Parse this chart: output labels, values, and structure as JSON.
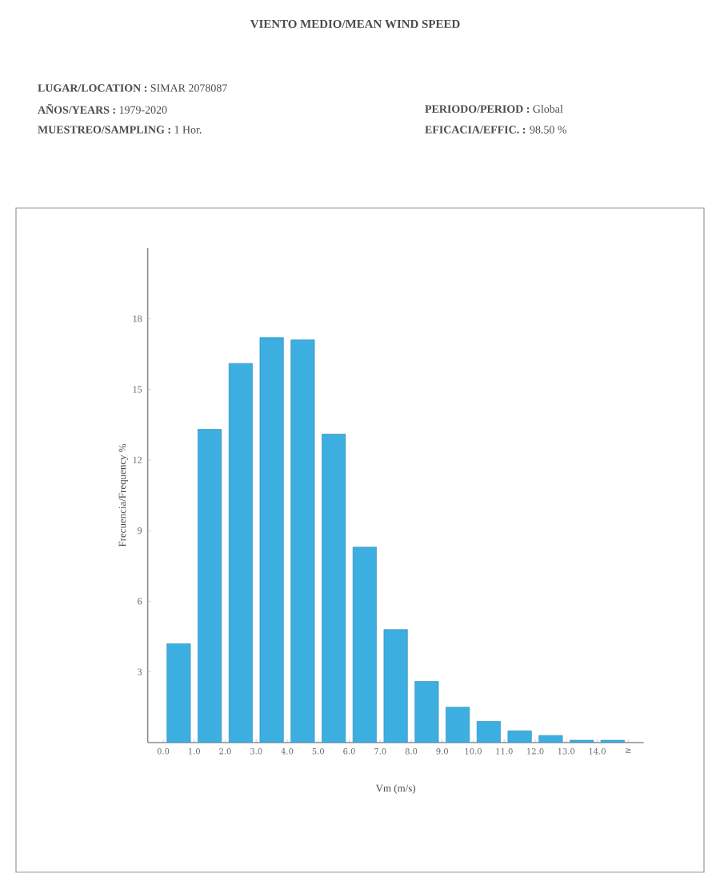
{
  "chart_data": {
    "type": "histogram",
    "title": "VIENTO MEDIO/MEAN WIND SPEED",
    "annotations": [
      "**LUGAR/LOCATION :** SIMAR 2078087",
      "**AÑOS/YEARS :** 1979-2020",
      "**PERIODO/PERIOD :** Global",
      "**MUESTREO/SAMPLING :** 1 Hor.",
      "**EFICACIA/EFFIC. :** 98.50 %"
    ],
    "xlabel": "Vm (m/s)",
    "ylabel": "Frecuencia/Frequency %",
    "bins": [
      0,
      1,
      2,
      3,
      4,
      5,
      6,
      7,
      8,
      9,
      10,
      11,
      12,
      13,
      14,
      15
    ],
    "values": [
      4.2,
      13.3,
      16.1,
      17.2,
      17.1,
      13.1,
      8.3,
      4.8,
      2.6,
      1.5,
      0.9,
      0.5,
      0.3,
      0.1,
      0.1
    ],
    "color": "#3daee0",
    "xlim": [
      -0.5,
      15.5
    ],
    "ylim": [
      0,
      21
    ],
    "xticks": [
      {
        "value": 0,
        "label": "0.0"
      },
      {
        "value": 1,
        "label": "1.0"
      },
      {
        "value": 2,
        "label": "2.0"
      },
      {
        "value": 3,
        "label": "3.0"
      },
      {
        "value": 4,
        "label": "4.0"
      },
      {
        "value": 5,
        "label": "5.0"
      },
      {
        "value": 6,
        "label": "6.0"
      },
      {
        "value": 7,
        "label": "7.0"
      },
      {
        "value": 8,
        "label": "8.0"
      },
      {
        "value": 9,
        "label": "9.0"
      },
      {
        "value": 10,
        "label": "10.0"
      },
      {
        "value": 11,
        "label": "11.0"
      },
      {
        "value": 12,
        "label": "12.0"
      },
      {
        "value": 13,
        "label": "13.0"
      },
      {
        "value": 14,
        "label": "14.0"
      },
      {
        "value": 15,
        "label": "≥"
      }
    ],
    "yticks": [
      3,
      6,
      9,
      12,
      15,
      18
    ],
    "grid": false
  }
}
